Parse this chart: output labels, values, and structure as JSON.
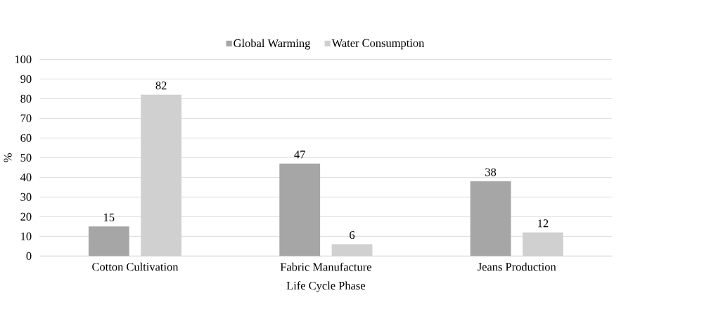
{
  "chart_data": {
    "type": "bar",
    "xlabel": "Life Cycle Phase",
    "ylabel": "%",
    "categories": [
      "Cotton Cultivation",
      "Fabric Manufacture",
      "Jeans Production"
    ],
    "series": [
      {
        "name": "Global Warming",
        "color": "#a6a6a6",
        "values": [
          15,
          47,
          38
        ]
      },
      {
        "name": "Water Consumption",
        "color": "#d0d0d0",
        "values": [
          82,
          6,
          12
        ]
      }
    ],
    "ylim": [
      0,
      100
    ],
    "yticks": [
      0,
      10,
      20,
      30,
      40,
      50,
      60,
      70,
      80,
      90,
      100
    ],
    "grid": "y",
    "legend": "top",
    "data_labels": true
  }
}
